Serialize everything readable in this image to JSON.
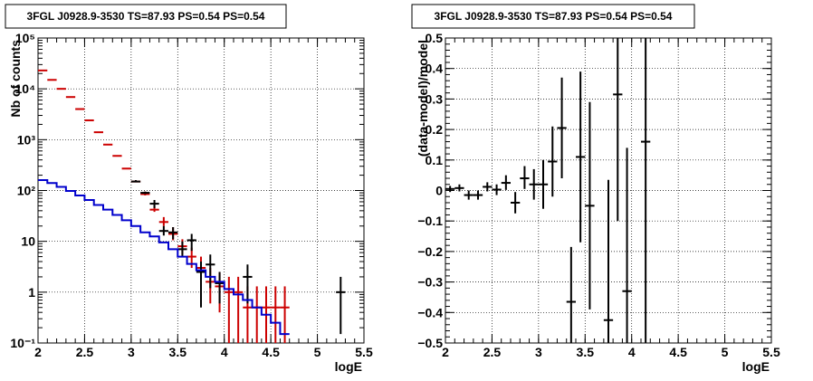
{
  "chart_data": [
    {
      "type": "line",
      "title": "3FGL J0928.9-3530 TS=87.93 PS=0.54 PS=0.54",
      "xlabel": "logE",
      "ylabel": "Nb of counts",
      "xlim": [
        2,
        5.5
      ],
      "ylim": [
        0.1,
        100000
      ],
      "yscale": "log",
      "grid": true,
      "xticks": [
        2,
        2.5,
        3,
        3.5,
        4,
        4.5,
        5,
        5.5
      ],
      "xtick_labels": [
        "2",
        "2.5",
        "3",
        "3.5",
        "4",
        "4.5",
        "5",
        "5.5"
      ],
      "yticks": [
        0.1,
        1,
        10,
        100,
        1000,
        10000,
        100000
      ],
      "ytick_labels": [
        "10⁻¹",
        "1",
        "10",
        "10²",
        "10³",
        "10⁴",
        "10⁵"
      ],
      "series": [
        {
          "color": "#cc0000",
          "kind": "markers",
          "x": [
            2.05,
            2.15,
            2.25,
            2.35,
            2.45,
            2.55,
            2.65,
            2.75,
            2.85,
            2.95,
            3.05,
            3.15,
            3.25,
            3.35,
            3.45,
            3.55,
            3.65,
            3.75,
            3.85,
            3.95,
            4.05,
            4.15,
            4.25,
            4.35,
            4.45,
            4.55,
            4.65
          ],
          "y": [
            23000,
            15000,
            10000,
            6900,
            4000,
            2400,
            1400,
            800,
            480,
            270,
            150,
            85,
            42,
            24,
            14,
            8,
            5,
            3,
            1.6,
            1.3,
            1,
            1,
            0.5,
            0.5,
            0.5,
            0.5,
            0.5
          ],
          "ylo": [
            23000,
            15000,
            10000,
            6900,
            4000,
            2400,
            1400,
            800,
            480,
            270,
            145,
            80,
            38,
            20,
            10.5,
            5.5,
            3,
            1.5,
            0.6,
            0.4,
            0.1,
            0.1,
            0.1,
            0.1,
            0.1,
            0.1,
            0.1
          ],
          "yhi": [
            23000,
            15000,
            10000,
            6900,
            4000,
            2400,
            1400,
            800,
            480,
            270,
            160,
            95,
            52,
            30,
            19,
            11,
            7.5,
            5,
            3,
            2.5,
            2,
            2,
            1.3,
            1.3,
            1.3,
            1.3,
            1.3
          ]
        },
        {
          "color": "#000000",
          "kind": "markers",
          "x": [
            3.05,
            3.15,
            3.25,
            3.35,
            3.45,
            3.55,
            3.65,
            3.75,
            3.85,
            3.95,
            4.25,
            5.25
          ],
          "y": [
            150,
            90,
            55,
            16,
            15,
            7,
            10.5,
            2.5,
            3.5,
            1.5,
            2,
            1
          ],
          "ylo": [
            145,
            85,
            45,
            13,
            11,
            5,
            6.5,
            0.5,
            1.2,
            0.6,
            0.6,
            0.15
          ],
          "yhi": [
            160,
            95,
            65,
            20,
            19,
            10,
            14,
            4,
            5.5,
            2.5,
            3.5,
            2
          ]
        },
        {
          "color": "#0000cc",
          "kind": "step",
          "edges": [
            2.0,
            2.1,
            2.2,
            2.3,
            2.4,
            2.5,
            2.6,
            2.7,
            2.8,
            2.9,
            3.0,
            3.1,
            3.2,
            3.3,
            3.4,
            3.5,
            3.6,
            3.7,
            3.8,
            3.9,
            4.0,
            4.1,
            4.2,
            4.3,
            4.4,
            4.5,
            4.6,
            4.7
          ],
          "values": [
            160,
            140,
            118,
            98,
            80,
            65,
            52,
            42,
            33,
            26,
            20,
            15,
            12.5,
            9.5,
            7,
            5,
            3.6,
            2.7,
            2.0,
            1.6,
            1.15,
            0.9,
            0.7,
            0.5,
            0.36,
            0.25,
            0.15
          ]
        }
      ]
    },
    {
      "type": "scatter",
      "title": "3FGL J0928.9-3530 TS=87.93 PS=0.54 PS=0.54",
      "xlabel": "logE",
      "ylabel": "(data-model)/model",
      "xlim": [
        2,
        5.5
      ],
      "ylim": [
        -0.5,
        0.5
      ],
      "grid": true,
      "xticks": [
        2,
        2.5,
        3,
        3.5,
        4,
        4.5,
        5,
        5.5
      ],
      "xtick_labels": [
        "2",
        "2.5",
        "3",
        "3.5",
        "4",
        "4.5",
        "5",
        "5.5"
      ],
      "yticks": [
        -0.5,
        -0.4,
        -0.3,
        -0.2,
        -0.1,
        0,
        0.1,
        0.2,
        0.3,
        0.4,
        0.5
      ],
      "ytick_labels": [
        "−0.5",
        "−0.4",
        "−0.3",
        "−0.2",
        "−0.1",
        "0",
        "0.1",
        "0.2",
        "0.3",
        "0.4",
        "0.5"
      ],
      "series": [
        {
          "color": "#000000",
          "kind": "markers",
          "x": [
            2.05,
            2.15,
            2.25,
            2.35,
            2.45,
            2.55,
            2.65,
            2.75,
            2.85,
            2.95,
            3.05,
            3.15,
            3.25,
            3.35,
            3.45,
            3.55,
            3.75,
            3.85,
            3.95,
            4.15
          ],
          "y": [
            0.005,
            0.008,
            -0.015,
            -0.015,
            0.012,
            0.003,
            0.025,
            -0.04,
            0.04,
            0.02,
            0.02,
            0.095,
            0.205,
            -0.365,
            0.11,
            -0.05,
            -0.425,
            0.315,
            -0.33,
            0.16
          ],
          "ylo": [
            -0.005,
            -0.003,
            -0.03,
            -0.03,
            -0.003,
            -0.015,
            0.002,
            -0.075,
            0.005,
            -0.03,
            -0.06,
            -0.02,
            0.04,
            -0.5,
            -0.17,
            -0.39,
            -0.5,
            -0.1,
            -0.5,
            -0.5
          ],
          "yhi": [
            0.015,
            0.02,
            0.0,
            0.0,
            0.027,
            0.02,
            0.05,
            -0.005,
            0.08,
            0.07,
            0.1,
            0.21,
            0.37,
            -0.185,
            0.39,
            0.29,
            0.035,
            0.5,
            0.14,
            0.5
          ]
        }
      ]
    }
  ]
}
